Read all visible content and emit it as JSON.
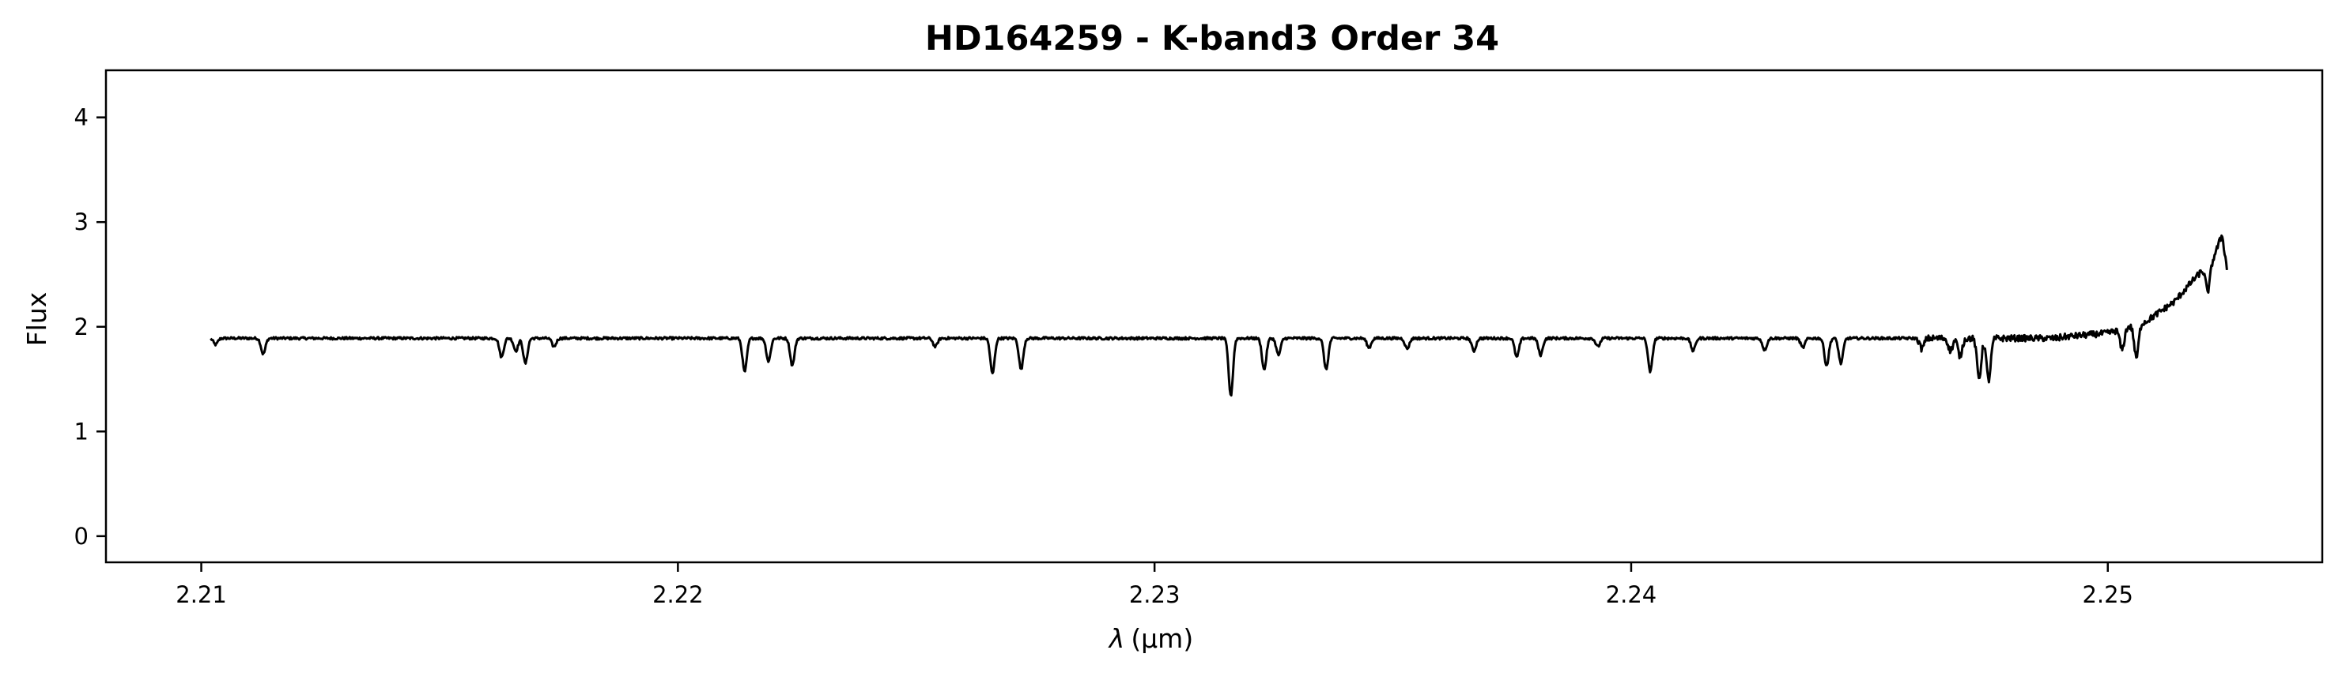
{
  "chart_data": {
    "type": "line",
    "title": "HD164259 - K-band3 Order 34",
    "xlabel_symbol": "λ",
    "xlabel_unit": "(μm)",
    "ylabel": "Flux",
    "xlim": [
      2.208,
      2.2545
    ],
    "ylim": [
      -0.25,
      4.45
    ],
    "xticks": [
      2.21,
      2.22,
      2.23,
      2.24,
      2.25
    ],
    "xtick_labels": [
      "2.21",
      "2.22",
      "2.23",
      "2.24",
      "2.25"
    ],
    "yticks": [
      0,
      1,
      2,
      3,
      4
    ],
    "ytick_labels": [
      "0",
      "1",
      "2",
      "3",
      "4"
    ],
    "grid": false,
    "line_color": "#000000",
    "series": [
      {
        "x_range": [
          2.2102,
          2.2525
        ],
        "continuum": 1.89,
        "absorption_lines": [
          {
            "x": 2.2103,
            "depth": 0.06
          },
          {
            "x": 2.2113,
            "depth": 0.15
          },
          {
            "x": 2.2163,
            "depth": 0.18
          },
          {
            "x": 2.2166,
            "depth": 0.12
          },
          {
            "x": 2.2168,
            "depth": 0.24
          },
          {
            "x": 2.2174,
            "depth": 0.08
          },
          {
            "x": 2.2214,
            "depth": 0.32
          },
          {
            "x": 2.2219,
            "depth": 0.22
          },
          {
            "x": 2.2224,
            "depth": 0.26
          },
          {
            "x": 2.2254,
            "depth": 0.08
          },
          {
            "x": 2.2266,
            "depth": 0.34
          },
          {
            "x": 2.2272,
            "depth": 0.3
          },
          {
            "x": 2.2316,
            "depth": 0.55
          },
          {
            "x": 2.2323,
            "depth": 0.3
          },
          {
            "x": 2.2326,
            "depth": 0.16
          },
          {
            "x": 2.2336,
            "depth": 0.3
          },
          {
            "x": 2.2345,
            "depth": 0.09
          },
          {
            "x": 2.2353,
            "depth": 0.1
          },
          {
            "x": 2.2367,
            "depth": 0.12
          },
          {
            "x": 2.2376,
            "depth": 0.18
          },
          {
            "x": 2.2381,
            "depth": 0.16
          },
          {
            "x": 2.2393,
            "depth": 0.08
          },
          {
            "x": 2.2404,
            "depth": 0.32
          },
          {
            "x": 2.2413,
            "depth": 0.12
          },
          {
            "x": 2.2428,
            "depth": 0.11
          },
          {
            "x": 2.2436,
            "depth": 0.09
          },
          {
            "x": 2.2441,
            "depth": 0.26
          },
          {
            "x": 2.2444,
            "depth": 0.24
          },
          {
            "x": 2.2461,
            "depth": 0.1
          },
          {
            "x": 2.2467,
            "depth": 0.12
          },
          {
            "x": 2.2469,
            "depth": 0.17
          },
          {
            "x": 2.2473,
            "depth": 0.38
          },
          {
            "x": 2.2475,
            "depth": 0.4
          },
          {
            "x": 2.2503,
            "depth": 0.2
          },
          {
            "x": 2.2506,
            "depth": 0.32
          },
          {
            "x": 2.2521,
            "depth": 0.25
          }
        ],
        "red_end_rise": [
          {
            "x": 2.249,
            "y": 1.9
          },
          {
            "x": 2.25,
            "y": 1.94
          },
          {
            "x": 2.2508,
            "y": 2.05
          },
          {
            "x": 2.2514,
            "y": 2.24
          },
          {
            "x": 2.2518,
            "y": 2.45
          },
          {
            "x": 2.2522,
            "y": 2.64
          },
          {
            "x": 2.2524,
            "y": 2.88
          },
          {
            "x": 2.2525,
            "y": 2.55
          }
        ]
      }
    ]
  }
}
